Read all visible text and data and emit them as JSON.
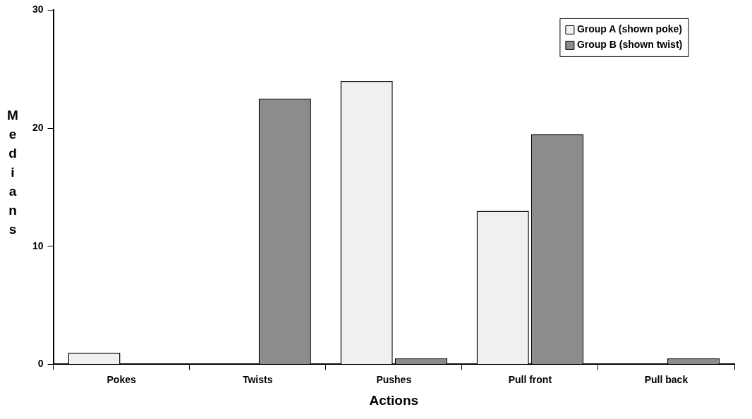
{
  "chart_data": {
    "type": "bar",
    "xlabel": "Actions",
    "ylabel": "Medians",
    "categories": [
      "Pokes",
      "Twists",
      "Pushes",
      "Pull front",
      "Pull back"
    ],
    "series": [
      {
        "name": "Group A (shown poke)",
        "color": "#f0f0f0",
        "values": [
          1,
          0,
          24,
          13,
          0
        ]
      },
      {
        "name": "Group B (shown twist)",
        "color": "#8c8c8c",
        "values": [
          0,
          22.5,
          0.5,
          19.5,
          0.5
        ]
      }
    ],
    "ylim": [
      0,
      30
    ],
    "yticks": [
      0,
      10,
      20,
      30
    ],
    "grid": false,
    "legend": "top right"
  }
}
